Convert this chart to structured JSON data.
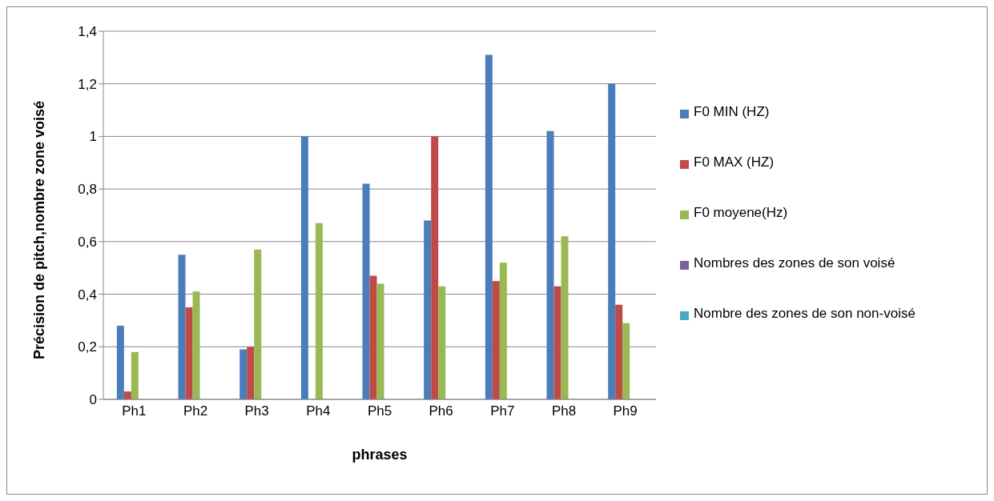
{
  "chart_data": {
    "type": "bar",
    "xlabel": "phrases",
    "ylabel": "Précision de pitch,nombre zone voisé",
    "categories": [
      "Ph1",
      "Ph2",
      "Ph3",
      "Ph4",
      "Ph5",
      "Ph6",
      "Ph7",
      "Ph8",
      "Ph9"
    ],
    "series": [
      {
        "name": "F0 MIN (HZ)",
        "color": "#4a7ebb",
        "values": [
          0.28,
          0.55,
          0.19,
          1.0,
          0.82,
          0.68,
          1.31,
          1.02,
          1.2
        ]
      },
      {
        "name": "F0 MAX (HZ)",
        "color": "#be4b48",
        "values": [
          0.03,
          0.35,
          0.2,
          0,
          0.47,
          1.0,
          0.45,
          0.43,
          0.36
        ]
      },
      {
        "name": "F0 moyene(Hz)",
        "color": "#98b954",
        "values": [
          0.18,
          0.41,
          0.57,
          0.67,
          0.44,
          0.43,
          0.52,
          0.62,
          0.29
        ]
      },
      {
        "name": "Nombres des zones de son  voisé",
        "color": "#7d60a0",
        "values": [
          null,
          null,
          null,
          null,
          null,
          null,
          null,
          null,
          null
        ]
      },
      {
        "name": "Nombre des zones de son non-voisé",
        "color": "#46aac5",
        "values": [
          null,
          null,
          null,
          null,
          null,
          null,
          null,
          null,
          null
        ]
      }
    ],
    "ylim": [
      0,
      1.4
    ],
    "yticks": [
      0,
      {
        "value": 0.2,
        "label": "0,2"
      },
      {
        "value": 0.4,
        "label": "0,4"
      },
      {
        "value": 0.6,
        "label": "0,6"
      },
      {
        "value": 0.8,
        "label": "0,8"
      },
      1,
      {
        "value": 1.2,
        "label": "1,2"
      },
      {
        "value": 1.4,
        "label": "1,4"
      }
    ],
    "grid": "y",
    "legend": "right"
  }
}
